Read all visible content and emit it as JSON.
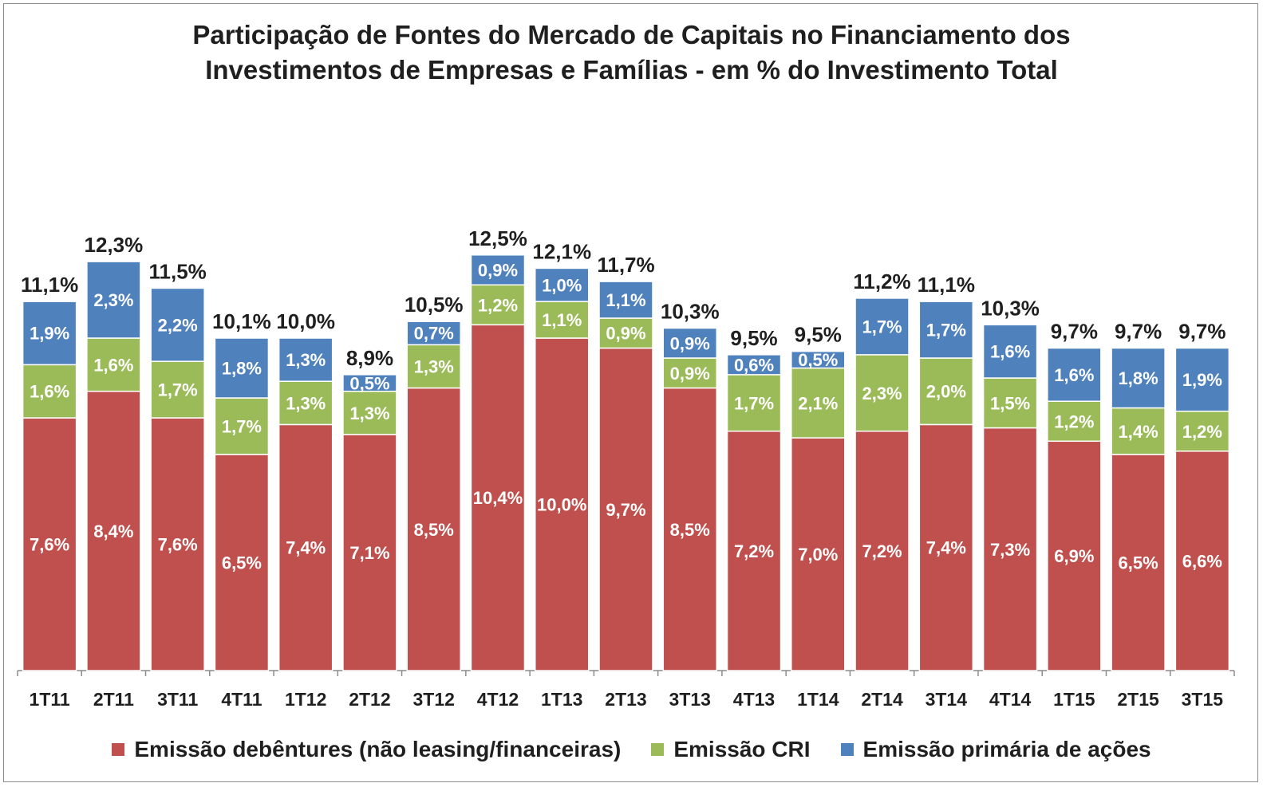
{
  "chart_data": {
    "type": "bar",
    "stacked": true,
    "title": "Participação de Fontes do Mercado de Capitais no Financiamento dos Investimentos de Empresas e Famílias - em % do Investimento Total",
    "title_lines": [
      "Participação de Fontes do Mercado de Capitais no Financiamento dos",
      "Investimentos de Empresas e Famílias - em % do Investimento Total"
    ],
    "categories": [
      "1T11",
      "2T11",
      "3T11",
      "4T11",
      "1T12",
      "2T12",
      "3T12",
      "4T12",
      "1T13",
      "2T13",
      "3T13",
      "4T13",
      "1T14",
      "2T14",
      "3T14",
      "4T14",
      "1T15",
      "2T15",
      "3T15"
    ],
    "series": [
      {
        "name": "Emissão debêntures (não leasing/financeiras)",
        "color": "#c0504d",
        "values": [
          7.6,
          8.4,
          7.6,
          6.5,
          7.4,
          7.1,
          8.5,
          10.4,
          10.0,
          9.7,
          8.5,
          7.2,
          7.0,
          7.2,
          7.4,
          7.3,
          6.9,
          6.5,
          6.6
        ],
        "labels": [
          "7,6%",
          "8,4%",
          "7,6%",
          "6,5%",
          "7,4%",
          "7,1%",
          "8,5%",
          "10,4%",
          "10,0%",
          "9,7%",
          "8,5%",
          "7,2%",
          "7,0%",
          "7,2%",
          "7,4%",
          "7,3%",
          "6,9%",
          "6,5%",
          "6,6%"
        ]
      },
      {
        "name": "Emissão CRI",
        "color": "#9bbb59",
        "values": [
          1.6,
          1.6,
          1.7,
          1.7,
          1.3,
          1.3,
          1.3,
          1.2,
          1.1,
          0.9,
          0.9,
          1.7,
          2.1,
          2.3,
          2.0,
          1.5,
          1.2,
          1.4,
          1.2
        ],
        "labels": [
          "1,6%",
          "1,6%",
          "1,7%",
          "1,7%",
          "1,3%",
          "1,3%",
          "1,3%",
          "1,2%",
          "1,1%",
          "0,9%",
          "0,9%",
          "1,7%",
          "2,1%",
          "2,3%",
          "2,0%",
          "1,5%",
          "1,2%",
          "1,4%",
          "1,2%"
        ]
      },
      {
        "name": "Emissão primária de ações",
        "color": "#4f81bd",
        "values": [
          1.9,
          2.3,
          2.2,
          1.8,
          1.3,
          0.5,
          0.7,
          0.9,
          1.0,
          1.1,
          0.9,
          0.6,
          0.5,
          1.7,
          1.7,
          1.6,
          1.6,
          1.8,
          1.9
        ],
        "labels": [
          "1,9%",
          "2,3%",
          "2,2%",
          "1,8%",
          "1,3%",
          "0,5%",
          "0,7%",
          "0,9%",
          "1,0%",
          "1,1%",
          "0,9%",
          "0,6%",
          "0,5%",
          "1,7%",
          "1,7%",
          "1,6%",
          "1,6%",
          "1,8%",
          "1,9%"
        ]
      }
    ],
    "totals": [
      11.1,
      12.3,
      11.5,
      10.1,
      10.0,
      8.9,
      10.5,
      12.5,
      12.1,
      11.7,
      10.3,
      9.5,
      9.5,
      11.2,
      11.1,
      10.3,
      9.7,
      9.7,
      9.7
    ],
    "total_labels": [
      "11,1%",
      "12,3%",
      "11,5%",
      "10,1%",
      "10,0%",
      "8,9%",
      "10,5%",
      "12,5%",
      "12,1%",
      "11,7%",
      "10,3%",
      "9,5%",
      "9,5%",
      "11,2%",
      "11,1%",
      "10,3%",
      "9,7%",
      "9,7%",
      "9,7%"
    ],
    "xlabel": "",
    "ylabel": "",
    "ylim": [
      0,
      12.5
    ],
    "grid": false,
    "legend_position": "bottom"
  }
}
